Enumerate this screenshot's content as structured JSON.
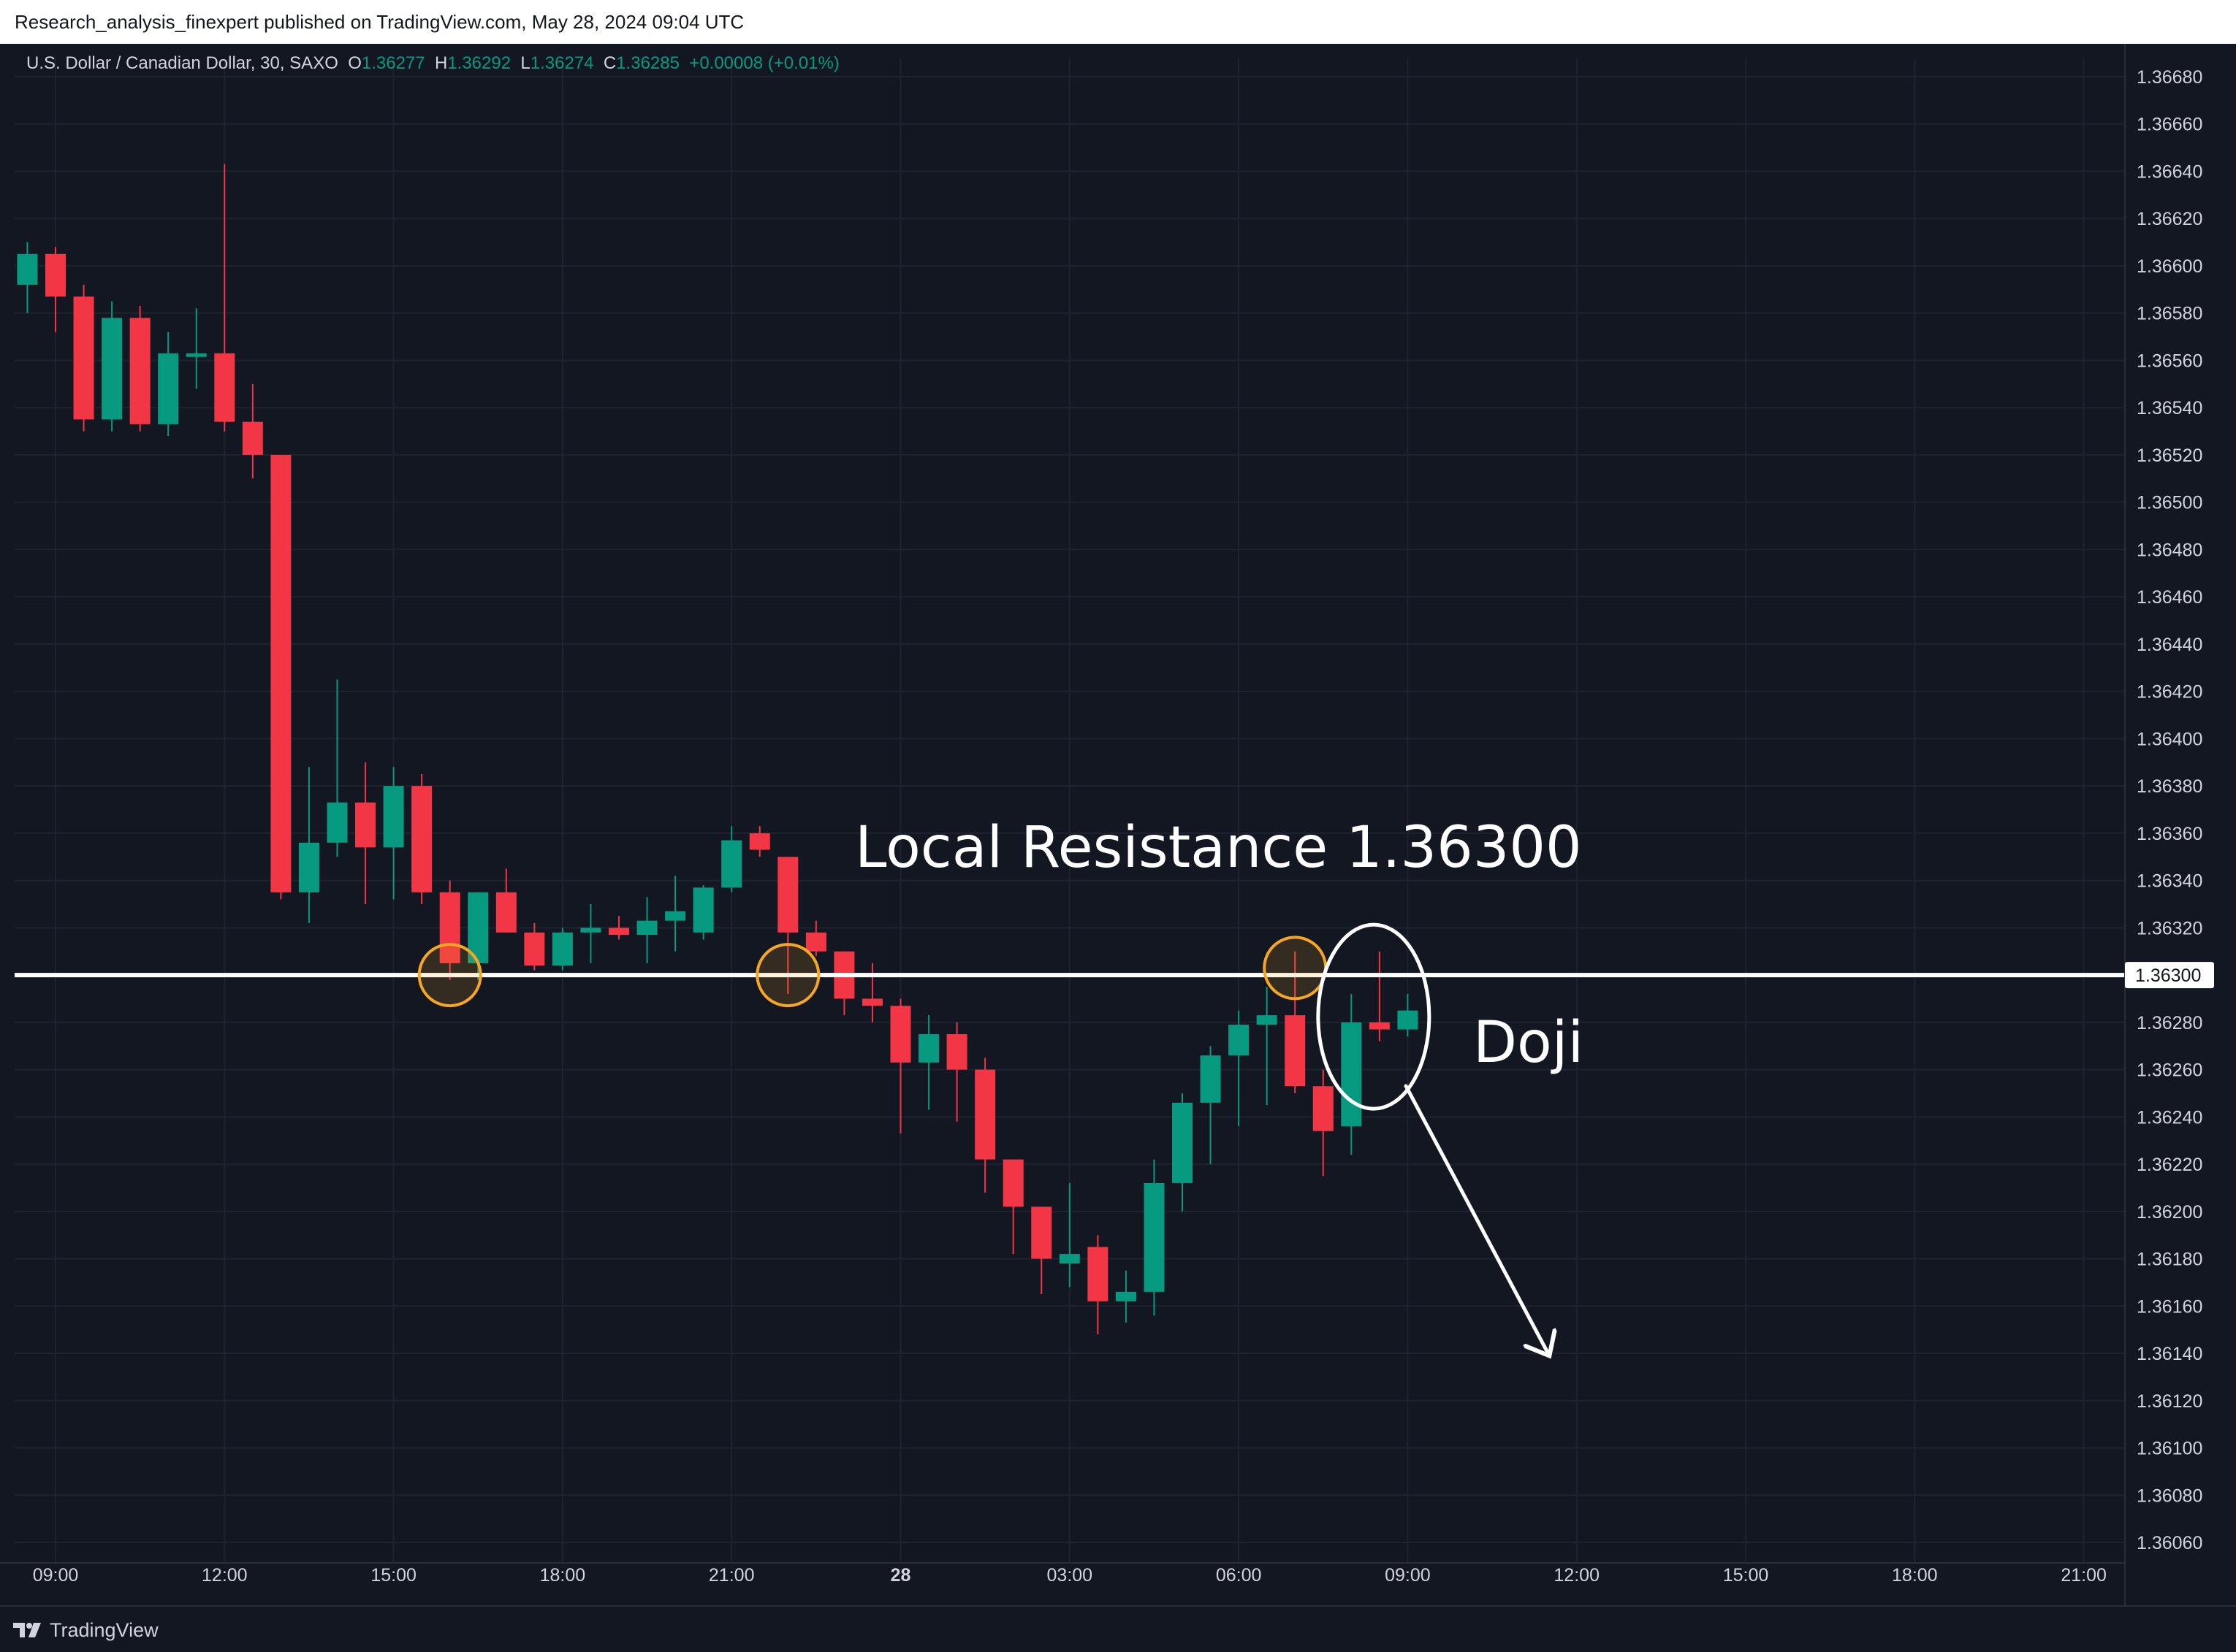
{
  "header": {
    "publish_line": "Research_analysis_finexpert published on TradingView.com, May 28, 2024 09:04 UTC"
  },
  "legend": {
    "symbol": "U.S. Dollar / Canadian Dollar, 30, SAXO",
    "o_label": "O",
    "o_value": "1.36277",
    "h_label": "H",
    "h_value": "1.36292",
    "l_label": "L",
    "l_value": "1.36274",
    "c_label": "C",
    "c_value": "1.36285",
    "change": "+0.00008 (+0.01%)"
  },
  "footer": {
    "brand": "TradingView"
  },
  "colors": {
    "background": "#131722",
    "grid": "#1f2330",
    "up": "#089981",
    "down": "#f23645",
    "axis_text": "#d1d4dc",
    "resistance_line": "#ffffff",
    "touch_circle": "#f5a623"
  },
  "annotations": {
    "resistance_label": "Local Resistance 1.36300",
    "resistance_price_tag": "1.36300",
    "doji_label": "Doji"
  },
  "chart_data": {
    "type": "candlestick",
    "interval_minutes": 30,
    "ylim": [
      1.3605,
      1.3669
    ],
    "price_ticks": [
      "1.36680",
      "1.36660",
      "1.36640",
      "1.36620",
      "1.36600",
      "1.36580",
      "1.36560",
      "1.36540",
      "1.36520",
      "1.36500",
      "1.36480",
      "1.36460",
      "1.36440",
      "1.36420",
      "1.36400",
      "1.36380",
      "1.36360",
      "1.36340",
      "1.36320",
      "1.36280",
      "1.36260",
      "1.36240",
      "1.36220",
      "1.36200",
      "1.36180",
      "1.36160",
      "1.36140",
      "1.36120",
      "1.36100",
      "1.36080",
      "1.36060"
    ],
    "time_ticks": [
      {
        "label": "09:00",
        "t": 0
      },
      {
        "label": "12:00",
        "t": 6
      },
      {
        "label": "15:00",
        "t": 12
      },
      {
        "label": "18:00",
        "t": 18
      },
      {
        "label": "21:00",
        "t": 24
      },
      {
        "label": "28",
        "t": 30,
        "bold": true
      },
      {
        "label": "03:00",
        "t": 36
      },
      {
        "label": "06:00",
        "t": 42
      },
      {
        "label": "09:00",
        "t": 48
      },
      {
        "label": "12:00",
        "t": 54
      },
      {
        "label": "15:00",
        "t": 60
      },
      {
        "label": "18:00",
        "t": 66
      },
      {
        "label": "21:00",
        "t": 72
      }
    ],
    "x_range": [
      -1.5,
      73.5
    ],
    "candles": [
      {
        "t": -1,
        "o": 1.36592,
        "h": 1.3661,
        "l": 1.3658,
        "c": 1.36605
      },
      {
        "t": 0,
        "o": 1.36605,
        "h": 1.36608,
        "l": 1.36572,
        "c": 1.36587
      },
      {
        "t": 1,
        "o": 1.36587,
        "h": 1.36592,
        "l": 1.3653,
        "c": 1.36535
      },
      {
        "t": 2,
        "o": 1.36535,
        "h": 1.36585,
        "l": 1.3653,
        "c": 1.36578
      },
      {
        "t": 3,
        "o": 1.36578,
        "h": 1.36583,
        "l": 1.3653,
        "c": 1.36533
      },
      {
        "t": 4,
        "o": 1.36533,
        "h": 1.36572,
        "l": 1.36528,
        "c": 1.36563
      },
      {
        "t": 5,
        "o": 1.36563,
        "h": 1.36582,
        "l": 1.36548,
        "c": 1.36563
      },
      {
        "t": 6,
        "o": 1.36563,
        "h": 1.36643,
        "l": 1.3653,
        "c": 1.36534
      },
      {
        "t": 7,
        "o": 1.36534,
        "h": 1.3655,
        "l": 1.3651,
        "c": 1.3652
      },
      {
        "t": 8,
        "o": 1.3652,
        "h": 1.3652,
        "l": 1.36332,
        "c": 1.36335
      },
      {
        "t": 9,
        "o": 1.36335,
        "h": 1.36388,
        "l": 1.36322,
        "c": 1.36356
      },
      {
        "t": 10,
        "o": 1.36356,
        "h": 1.36425,
        "l": 1.3635,
        "c": 1.36373
      },
      {
        "t": 11,
        "o": 1.36373,
        "h": 1.3639,
        "l": 1.3633,
        "c": 1.36354
      },
      {
        "t": 12,
        "o": 1.36354,
        "h": 1.36388,
        "l": 1.36332,
        "c": 1.3638
      },
      {
        "t": 13,
        "o": 1.3638,
        "h": 1.36385,
        "l": 1.3633,
        "c": 1.36335
      },
      {
        "t": 14,
        "o": 1.36335,
        "h": 1.3634,
        "l": 1.36298,
        "c": 1.36305
      },
      {
        "t": 15,
        "o": 1.36305,
        "h": 1.36335,
        "l": 1.36298,
        "c": 1.36335
      },
      {
        "t": 16,
        "o": 1.36335,
        "h": 1.36345,
        "l": 1.36318,
        "c": 1.36318
      },
      {
        "t": 17,
        "o": 1.36318,
        "h": 1.36322,
        "l": 1.36302,
        "c": 1.36304
      },
      {
        "t": 18,
        "o": 1.36304,
        "h": 1.3632,
        "l": 1.36302,
        "c": 1.36318
      },
      {
        "t": 19,
        "o": 1.36318,
        "h": 1.3633,
        "l": 1.36305,
        "c": 1.3632
      },
      {
        "t": 20,
        "o": 1.3632,
        "h": 1.36325,
        "l": 1.36315,
        "c": 1.36317
      },
      {
        "t": 21,
        "o": 1.36317,
        "h": 1.36333,
        "l": 1.36305,
        "c": 1.36323
      },
      {
        "t": 22,
        "o": 1.36323,
        "h": 1.36342,
        "l": 1.3631,
        "c": 1.36327
      },
      {
        "t": 23,
        "o": 1.36318,
        "h": 1.36338,
        "l": 1.36315,
        "c": 1.36337
      },
      {
        "t": 24,
        "o": 1.36337,
        "h": 1.36363,
        "l": 1.36335,
        "c": 1.36357
      },
      {
        "t": 25,
        "o": 1.3636,
        "h": 1.36363,
        "l": 1.3635,
        "c": 1.36353
      },
      {
        "t": 26,
        "o": 1.3635,
        "h": 1.3635,
        "l": 1.36292,
        "c": 1.36318
      },
      {
        "t": 27,
        "o": 1.36318,
        "h": 1.36323,
        "l": 1.36308,
        "c": 1.3631
      },
      {
        "t": 28,
        "o": 1.3631,
        "h": 1.3631,
        "l": 1.36283,
        "c": 1.3629
      },
      {
        "t": 29,
        "o": 1.3629,
        "h": 1.36305,
        "l": 1.3628,
        "c": 1.36287
      },
      {
        "t": 30,
        "o": 1.36287,
        "h": 1.3629,
        "l": 1.36233,
        "c": 1.36263
      },
      {
        "t": 31,
        "o": 1.36263,
        "h": 1.36283,
        "l": 1.36243,
        "c": 1.36275
      },
      {
        "t": 32,
        "o": 1.36275,
        "h": 1.3628,
        "l": 1.36238,
        "c": 1.3626
      },
      {
        "t": 33,
        "o": 1.3626,
        "h": 1.36265,
        "l": 1.36208,
        "c": 1.36222
      },
      {
        "t": 34,
        "o": 1.36222,
        "h": 1.36222,
        "l": 1.36182,
        "c": 1.36202
      },
      {
        "t": 35,
        "o": 1.36202,
        "h": 1.36202,
        "l": 1.36165,
        "c": 1.3618
      },
      {
        "t": 36,
        "o": 1.36178,
        "h": 1.36212,
        "l": 1.36168,
        "c": 1.36182
      },
      {
        "t": 37,
        "o": 1.36185,
        "h": 1.3619,
        "l": 1.36148,
        "c": 1.36162
      },
      {
        "t": 38,
        "o": 1.36162,
        "h": 1.36175,
        "l": 1.36153,
        "c": 1.36166
      },
      {
        "t": 39,
        "o": 1.36166,
        "h": 1.36222,
        "l": 1.36156,
        "c": 1.36212
      },
      {
        "t": 40,
        "o": 1.36212,
        "h": 1.3625,
        "l": 1.362,
        "c": 1.36246
      },
      {
        "t": 41,
        "o": 1.36246,
        "h": 1.3627,
        "l": 1.3622,
        "c": 1.36266
      },
      {
        "t": 42,
        "o": 1.36266,
        "h": 1.36285,
        "l": 1.36236,
        "c": 1.36279
      },
      {
        "t": 43,
        "o": 1.36279,
        "h": 1.36295,
        "l": 1.36245,
        "c": 1.36283
      },
      {
        "t": 44,
        "o": 1.36283,
        "h": 1.3631,
        "l": 1.3625,
        "c": 1.36253
      },
      {
        "t": 45,
        "o": 1.36253,
        "h": 1.3626,
        "l": 1.36215,
        "c": 1.36234
      },
      {
        "t": 46,
        "o": 1.36236,
        "h": 1.36292,
        "l": 1.36224,
        "c": 1.3628
      },
      {
        "t": 47,
        "o": 1.3628,
        "h": 1.3631,
        "l": 1.36272,
        "c": 1.36277
      },
      {
        "t": 48,
        "o": 1.36277,
        "h": 1.36292,
        "l": 1.36274,
        "c": 1.36285
      }
    ],
    "resistance_level": 1.363,
    "touch_points": [
      {
        "t": 14,
        "p": 1.363
      },
      {
        "t": 26,
        "p": 1.363
      },
      {
        "t": 44,
        "p": 1.36303
      }
    ],
    "doji_highlight": {
      "t": 47,
      "p": 1.36287
    }
  }
}
